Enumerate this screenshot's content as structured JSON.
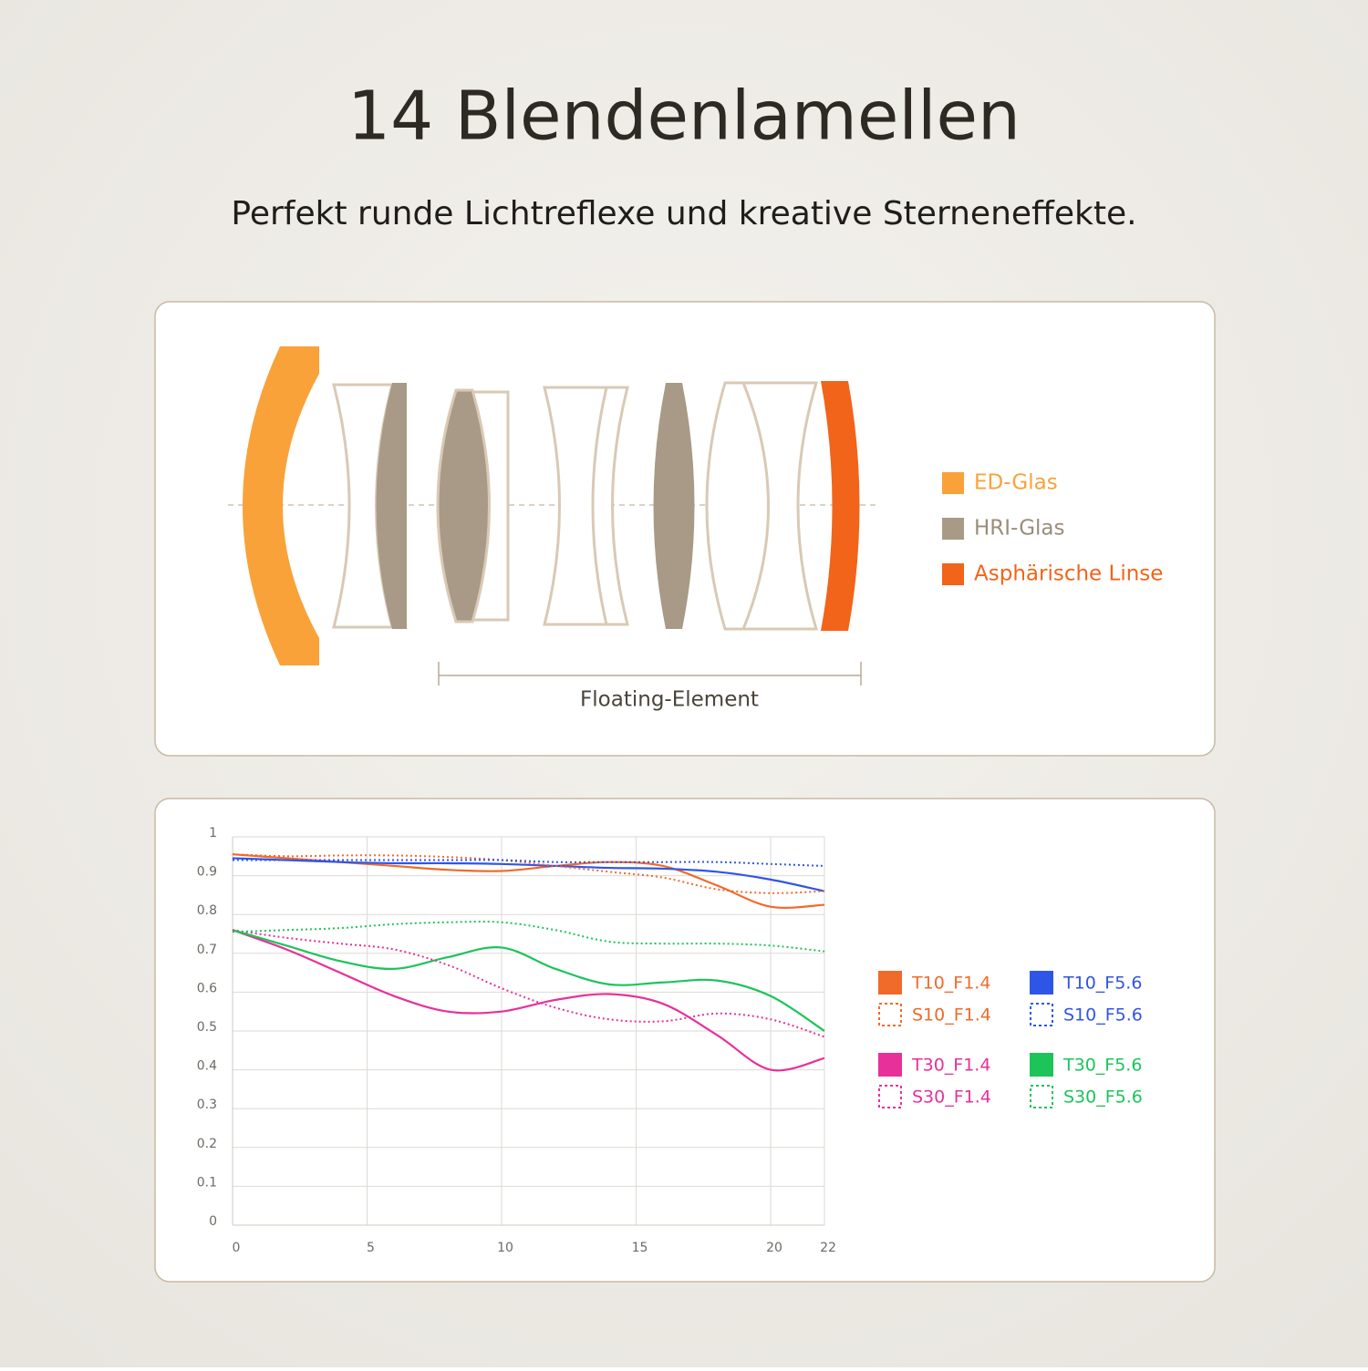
{
  "header": {
    "title": "14 Blendenlamellen",
    "subtitle": "Perfekt runde Lichtreflexe und kreative Sterneneffekte."
  },
  "lens_diagram": {
    "legend": [
      {
        "label": "ED-Glas"
      },
      {
        "label": "HRI-Glas"
      },
      {
        "label": "Asphärische Linse"
      }
    ],
    "floating_label": "Floating-Element"
  },
  "chart_data": {
    "type": "line",
    "x": [
      0,
      2,
      4,
      6,
      8,
      10,
      12,
      14,
      16,
      18,
      20,
      22
    ],
    "xlim": [
      0,
      22
    ],
    "xticks": [
      0,
      5,
      10,
      15,
      20,
      22
    ],
    "ylim": [
      0,
      1
    ],
    "yticks": [
      0,
      0.1,
      0.2,
      0.3,
      0.4,
      0.5,
      0.6,
      0.7,
      0.8,
      0.9,
      1
    ],
    "grid": true,
    "series": [
      {
        "name": "T10_F1.4",
        "color": "#f06a2a",
        "style": "solid",
        "values": [
          0.955,
          0.945,
          0.935,
          0.925,
          0.915,
          0.912,
          0.925,
          0.935,
          0.925,
          0.875,
          0.82,
          0.825
        ]
      },
      {
        "name": "T10_F5.6",
        "color": "#2f55e8",
        "style": "solid",
        "values": [
          0.945,
          0.94,
          0.935,
          0.932,
          0.932,
          0.93,
          0.925,
          0.92,
          0.918,
          0.91,
          0.89,
          0.86
        ]
      },
      {
        "name": "S10_F1.4",
        "color": "#f06a2a",
        "style": "dotted",
        "values": [
          0.955,
          0.95,
          0.952,
          0.952,
          0.948,
          0.94,
          0.925,
          0.91,
          0.895,
          0.865,
          0.855,
          0.86
        ]
      },
      {
        "name": "S10_F5.6",
        "color": "#2f55e8",
        "style": "dotted",
        "values": [
          0.94,
          0.94,
          0.94,
          0.94,
          0.94,
          0.94,
          0.935,
          0.935,
          0.935,
          0.935,
          0.93,
          0.925
        ]
      },
      {
        "name": "T30_F1.4",
        "color": "#e8309a",
        "style": "solid",
        "values": [
          0.76,
          0.71,
          0.65,
          0.59,
          0.55,
          0.55,
          0.58,
          0.595,
          0.57,
          0.49,
          0.4,
          0.43
        ]
      },
      {
        "name": "T30_F5.6",
        "color": "#1cc45a",
        "style": "solid",
        "values": [
          0.76,
          0.72,
          0.68,
          0.66,
          0.69,
          0.715,
          0.66,
          0.62,
          0.625,
          0.63,
          0.59,
          0.5
        ]
      },
      {
        "name": "S30_F1.4",
        "color": "#e8309a",
        "style": "dotted",
        "values": [
          0.76,
          0.74,
          0.725,
          0.71,
          0.67,
          0.61,
          0.56,
          0.53,
          0.525,
          0.545,
          0.53,
          0.485
        ]
      },
      {
        "name": "S30_F5.6",
        "color": "#1cc45a",
        "style": "dotted",
        "values": [
          0.755,
          0.76,
          0.765,
          0.775,
          0.78,
          0.78,
          0.76,
          0.73,
          0.725,
          0.725,
          0.72,
          0.705
        ]
      }
    ]
  }
}
